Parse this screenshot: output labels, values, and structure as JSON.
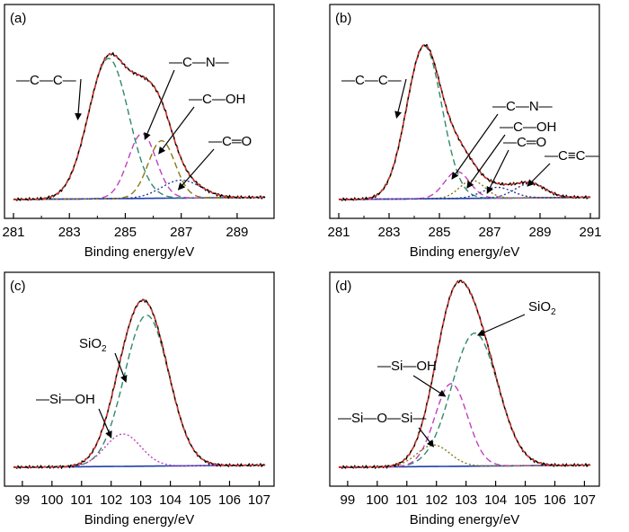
{
  "colors": {
    "measured": "#000000",
    "envelope": "#e8352b",
    "baseline": "#1f3fa8",
    "peak_green": "#2e8a68",
    "peak_magenta": "#c040c0",
    "peak_olive": "#8a7a10",
    "peak_navy": "#2a3a98"
  },
  "chart_data": [
    {
      "type": "line",
      "panel": "(a)",
      "xlabel": "Binding energy/eV",
      "ylabel": "",
      "xlim": [
        281,
        290
      ],
      "xticks": [
        "281",
        "283",
        "285",
        "287",
        "289"
      ],
      "tick_values": [
        281,
        283,
        285,
        287,
        289
      ],
      "peaks": [
        {
          "label": "—C—C—",
          "center": 284.4,
          "height": 0.78,
          "sigma": 0.72,
          "color_key": "peak_green",
          "style": "dashed",
          "arrow_to": [
            283.3,
            0.45
          ]
        },
        {
          "label": "—C—N—",
          "center": 285.6,
          "height": 0.36,
          "sigma": 0.5,
          "color_key": "peak_magenta",
          "style": "dashed",
          "arrow_to": [
            285.7,
            0.34
          ]
        },
        {
          "label": "—C—OH",
          "center": 286.3,
          "height": 0.32,
          "sigma": 0.48,
          "color_key": "peak_olive",
          "style": "dashed",
          "arrow_to": [
            286.2,
            0.26
          ]
        },
        {
          "label": "—C═O",
          "center": 287.0,
          "height": 0.1,
          "sigma": 0.7,
          "color_key": "peak_navy",
          "style": "dotted",
          "arrow_to": [
            286.9,
            0.06
          ]
        }
      ],
      "series": [
        {
          "name": "measured",
          "color_key": "measured",
          "style": "solid"
        },
        {
          "name": "envelope",
          "color_key": "envelope",
          "style": "dashed"
        },
        {
          "name": "baseline",
          "color_key": "baseline",
          "style": "solid"
        }
      ]
    },
    {
      "type": "line",
      "panel": "(b)",
      "xlabel": "Binding energy/eV",
      "ylabel": "",
      "xlim": [
        281,
        291
      ],
      "xticks": [
        "281",
        "283",
        "285",
        "287",
        "289",
        "291"
      ],
      "tick_values": [
        281,
        283,
        285,
        287,
        289,
        291
      ],
      "peaks": [
        {
          "label": "—C—C—",
          "center": 284.4,
          "height": 0.85,
          "sigma": 0.7,
          "color_key": "peak_green",
          "style": "dashed",
          "arrow_to": [
            283.3,
            0.46
          ]
        },
        {
          "label": "—C—N—",
          "center": 285.7,
          "height": 0.15,
          "sigma": 0.5,
          "color_key": "peak_magenta",
          "style": "dashed",
          "arrow_to": [
            285.5,
            0.12
          ]
        },
        {
          "label": "—C—OH",
          "center": 286.3,
          "height": 0.1,
          "sigma": 0.5,
          "color_key": "peak_olive",
          "style": "dotted",
          "arrow_to": [
            286.1,
            0.07
          ]
        },
        {
          "label": "—C═O",
          "center": 287.3,
          "height": 0.06,
          "sigma": 0.6,
          "color_key": "peak_navy",
          "style": "dotted",
          "arrow_to": [
            286.9,
            0.04
          ]
        },
        {
          "label": "—C≡C—",
          "center": 288.6,
          "height": 0.08,
          "sigma": 0.6,
          "color_key": "peak_navy",
          "style": "dotted",
          "arrow_to": [
            288.5,
            0.08
          ]
        }
      ],
      "series": [
        {
          "name": "measured",
          "color_key": "measured",
          "style": "solid"
        },
        {
          "name": "envelope",
          "color_key": "envelope",
          "style": "dashed"
        },
        {
          "name": "baseline",
          "color_key": "baseline",
          "style": "solid"
        }
      ]
    },
    {
      "type": "line",
      "panel": "(c)",
      "xlabel": "Binding energy/eV",
      "ylabel": "",
      "xlim": [
        98.7,
        107.2
      ],
      "xticks": [
        "99",
        "100",
        "101",
        "102",
        "103",
        "104",
        "105",
        "106",
        "107"
      ],
      "tick_values": [
        99,
        100,
        101,
        102,
        103,
        104,
        105,
        106,
        107
      ],
      "peaks": [
        {
          "label": "SiO2",
          "center": 103.2,
          "height": 0.84,
          "sigma": 0.75,
          "color_key": "peak_green",
          "style": "dashed",
          "arrow_to": [
            102.5,
            0.48
          ]
        },
        {
          "label": "—Si—OH",
          "center": 102.4,
          "height": 0.18,
          "sigma": 0.6,
          "color_key": "peak_magenta",
          "style": "dotted",
          "arrow_to": [
            102.0,
            0.17
          ]
        }
      ],
      "series": [
        {
          "name": "measured",
          "color_key": "measured",
          "style": "solid"
        },
        {
          "name": "envelope",
          "color_key": "envelope",
          "style": "dashed"
        },
        {
          "name": "baseline",
          "color_key": "baseline",
          "style": "solid"
        }
      ]
    },
    {
      "type": "line",
      "panel": "(d)",
      "xlabel": "Binding energy/eV",
      "ylabel": "",
      "xlim": [
        98.7,
        107.2
      ],
      "xticks": [
        "99",
        "100",
        "101",
        "102",
        "103",
        "104",
        "105",
        "106",
        "107"
      ],
      "tick_values": [
        99,
        100,
        101,
        102,
        103,
        104,
        105,
        106,
        107
      ],
      "peaks": [
        {
          "label": "SiO2",
          "center": 103.3,
          "height": 0.74,
          "sigma": 0.78,
          "color_key": "peak_green",
          "style": "dashed",
          "arrow_to": [
            103.4,
            0.74
          ]
        },
        {
          "label": "—Si—OH",
          "center": 102.5,
          "height": 0.46,
          "sigma": 0.55,
          "color_key": "peak_magenta",
          "style": "dashed",
          "arrow_to": [
            102.3,
            0.4
          ]
        },
        {
          "label": "—Si—O—Si—",
          "center": 101.9,
          "height": 0.12,
          "sigma": 0.55,
          "color_key": "peak_olive",
          "style": "dotted",
          "arrow_to": [
            101.9,
            0.12
          ]
        }
      ],
      "series": [
        {
          "name": "measured",
          "color_key": "measured",
          "style": "solid"
        },
        {
          "name": "envelope",
          "color_key": "envelope",
          "style": "dashed"
        },
        {
          "name": "baseline",
          "color_key": "baseline",
          "style": "solid"
        }
      ]
    }
  ]
}
